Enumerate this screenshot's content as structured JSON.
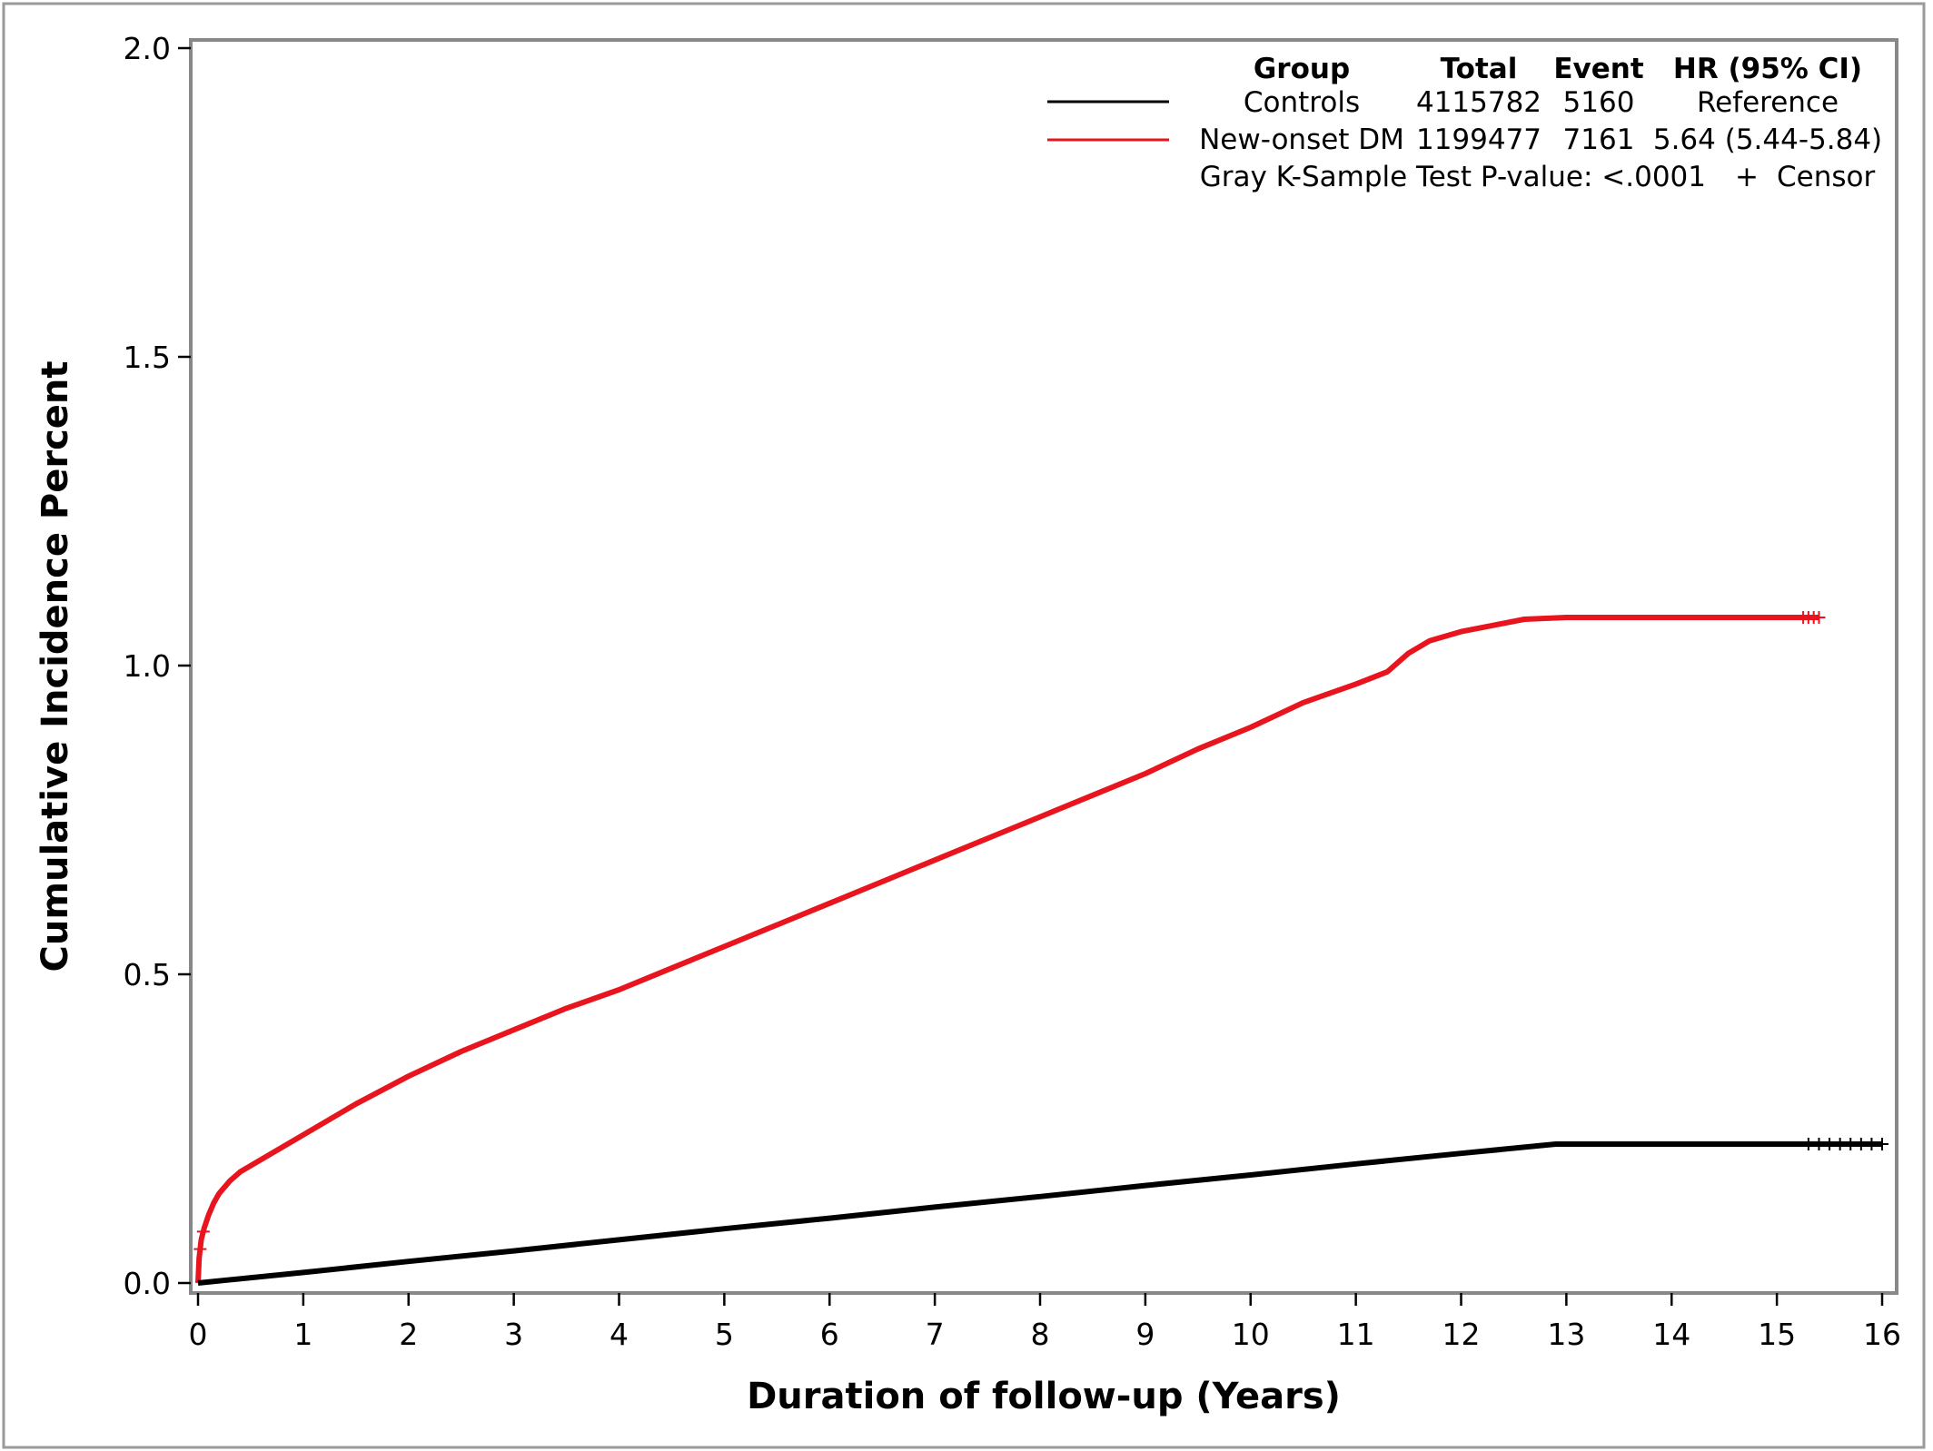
{
  "chart_data": {
    "type": "line",
    "subtype": "cumulative-incidence",
    "xlabel": "Duration of follow-up (Years)",
    "ylabel": "Cumulative Incidence Percent",
    "xlim": [
      0,
      16
    ],
    "ylim": [
      0,
      2.0
    ],
    "x_ticks": [
      "0",
      "1",
      "2",
      "3",
      "4",
      "5",
      "6",
      "7",
      "8",
      "9",
      "10",
      "11",
      "12",
      "13",
      "14",
      "15",
      "16"
    ],
    "y_ticks": [
      "0.0",
      "0.5",
      "1.0",
      "1.5",
      "2.0"
    ],
    "grid": false,
    "legend_position": "top-right",
    "legend": {
      "headers": {
        "group": "Group",
        "total": "Total",
        "event": "Event",
        "hr": "HR (95% CI)"
      },
      "rows": [
        {
          "group": "Controls",
          "total": "4115782",
          "event": "5160",
          "hr": "Reference",
          "color": "#000000"
        },
        {
          "group": "New-onset DM",
          "total": "1199477",
          "event": "7161",
          "hr": "5.64 (5.44-5.84)",
          "color": "#e8141e"
        }
      ],
      "test_text": "Gray K-Sample Test P-value: <.0001",
      "censor_symbol": "+",
      "censor_label": "Censor"
    },
    "series": [
      {
        "name": "New-onset DM",
        "color": "#e8141e",
        "x": [
          0,
          0.01,
          0.03,
          0.06,
          0.1,
          0.15,
          0.2,
          0.3,
          0.4,
          0.5,
          0.7,
          1.0,
          1.5,
          2.0,
          2.5,
          3.0,
          3.5,
          4.0,
          4.5,
          5.0,
          5.5,
          6.0,
          6.5,
          7.0,
          7.5,
          8.0,
          8.5,
          9.0,
          9.5,
          10.0,
          10.5,
          11.0,
          11.3,
          11.5,
          11.7,
          12.0,
          12.3,
          12.6,
          13.0,
          14.0,
          15.0,
          15.4
        ],
        "y": [
          0,
          0.04,
          0.07,
          0.09,
          0.11,
          0.13,
          0.145,
          0.165,
          0.18,
          0.19,
          0.21,
          0.24,
          0.29,
          0.335,
          0.375,
          0.41,
          0.445,
          0.475,
          0.51,
          0.545,
          0.58,
          0.615,
          0.65,
          0.685,
          0.72,
          0.755,
          0.79,
          0.825,
          0.865,
          0.9,
          0.94,
          0.97,
          0.99,
          1.02,
          1.04,
          1.055,
          1.065,
          1.075,
          1.078,
          1.078,
          1.078,
          1.078
        ],
        "censor_x": [
          0.02,
          0.05,
          15.25,
          15.3,
          15.35,
          15.4
        ]
      },
      {
        "name": "Controls",
        "color": "#000000",
        "x": [
          0,
          1,
          2,
          3,
          4,
          5,
          6,
          7,
          8,
          9,
          10,
          11,
          12,
          12.9,
          13,
          14,
          15,
          16
        ],
        "y": [
          0,
          0.017,
          0.035,
          0.052,
          0.07,
          0.088,
          0.105,
          0.123,
          0.14,
          0.158,
          0.175,
          0.193,
          0.21,
          0.225,
          0.225,
          0.225,
          0.225,
          0.225
        ],
        "censor_x": [
          15.3,
          15.4,
          15.5,
          15.6,
          15.7,
          15.8,
          15.9,
          16.0
        ]
      }
    ]
  }
}
